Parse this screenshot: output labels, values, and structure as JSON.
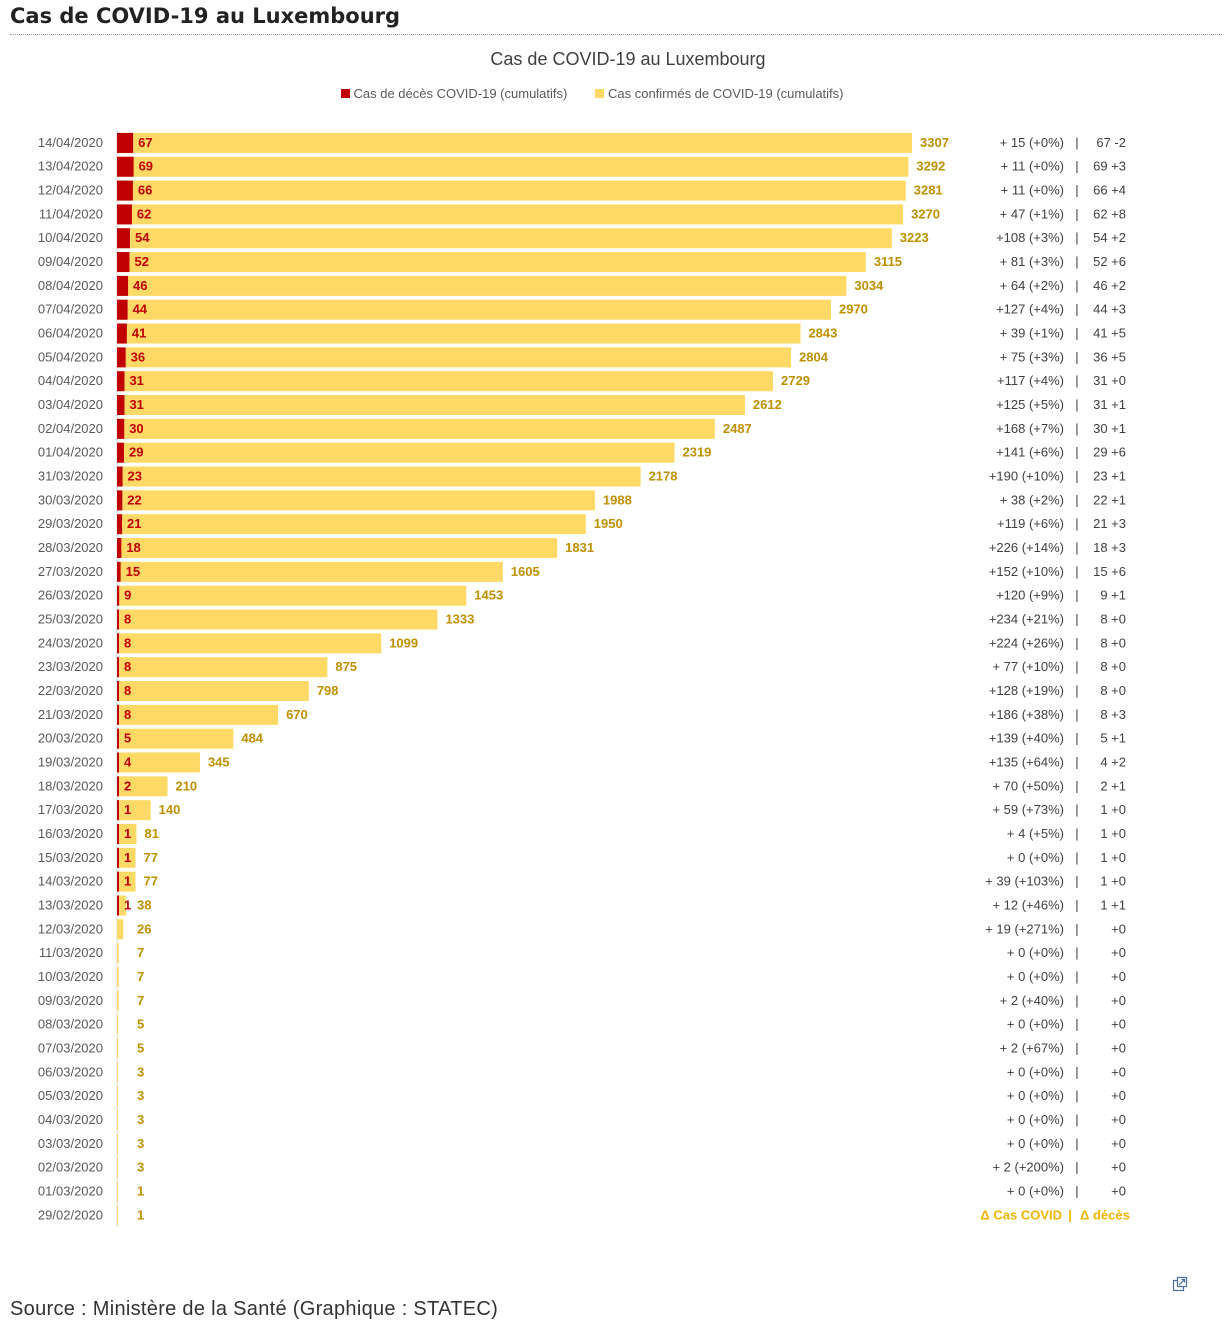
{
  "page": {
    "heading": "Cas de COVID-19 au Luxembourg",
    "source": "Source : Ministère de la Santé (Graphique : STATEC)",
    "popout_icon": "external-link-icon"
  },
  "colors": {
    "deaths": "#c00000",
    "confirmed": "#ffd966",
    "confirmed_text": "#bf9000",
    "delta_legend": "#f1b400",
    "grid": "#d9d9d9"
  },
  "chart_data": {
    "type": "bar",
    "orientation": "horizontal",
    "title": "Cas de COVID-19 au Luxembourg",
    "legend": [
      {
        "name": "Cas de décès  COVID-19 (cumulatifs)",
        "color": "#c00000"
      },
      {
        "name": "Cas confirmés de COVID-19 (cumulatifs)",
        "color": "#ffd966"
      }
    ],
    "xlim": [
      0,
      3307
    ],
    "categories": [
      "14/04/2020",
      "13/04/2020",
      "12/04/2020",
      "11/04/2020",
      "10/04/2020",
      "09/04/2020",
      "08/04/2020",
      "07/04/2020",
      "06/04/2020",
      "05/04/2020",
      "04/04/2020",
      "03/04/2020",
      "02/04/2020",
      "01/04/2020",
      "31/03/2020",
      "30/03/2020",
      "29/03/2020",
      "28/03/2020",
      "27/03/2020",
      "26/03/2020",
      "25/03/2020",
      "24/03/2020",
      "23/03/2020",
      "22/03/2020",
      "21/03/2020",
      "20/03/2020",
      "19/03/2020",
      "18/03/2020",
      "17/03/2020",
      "16/03/2020",
      "15/03/2020",
      "14/03/2020",
      "13/03/2020",
      "12/03/2020",
      "11/03/2020",
      "10/03/2020",
      "09/03/2020",
      "08/03/2020",
      "07/03/2020",
      "06/03/2020",
      "05/03/2020",
      "04/03/2020",
      "03/03/2020",
      "02/03/2020",
      "01/03/2020",
      "29/02/2020"
    ],
    "series": [
      {
        "name": "Cas de décès  COVID-19 (cumulatifs)",
        "values": [
          67,
          69,
          66,
          62,
          54,
          52,
          46,
          44,
          41,
          36,
          31,
          31,
          30,
          29,
          23,
          22,
          21,
          18,
          15,
          9,
          8,
          8,
          8,
          8,
          8,
          5,
          4,
          2,
          1,
          1,
          1,
          1,
          1,
          0,
          0,
          0,
          0,
          0,
          0,
          0,
          0,
          0,
          0,
          0,
          0,
          0
        ]
      },
      {
        "name": "Cas confirmés de COVID-19 (cumulatifs)",
        "values": [
          3307,
          3292,
          3281,
          3270,
          3223,
          3115,
          3034,
          2970,
          2843,
          2804,
          2729,
          2612,
          2487,
          2319,
          2178,
          1988,
          1950,
          1831,
          1605,
          1453,
          1333,
          1099,
          875,
          798,
          670,
          484,
          345,
          210,
          140,
          81,
          77,
          77,
          38,
          26,
          7,
          7,
          7,
          5,
          5,
          3,
          3,
          3,
          3,
          3,
          1,
          1
        ]
      }
    ],
    "death_labels": [
      "67",
      "69",
      "66",
      "62",
      "54",
      "52",
      "46",
      "44",
      "41",
      "36",
      "31",
      "31",
      "30",
      "29",
      "23",
      "22",
      "21",
      "18",
      "15",
      "9",
      "8",
      "8",
      "8",
      "8",
      "8",
      "5",
      "4",
      "2",
      "1",
      "1",
      "1",
      "1",
      "1",
      "",
      "",
      "",
      "",
      "",
      "",
      "",
      "",
      "",
      "",
      "",
      "",
      ""
    ],
    "confirmed_labels": [
      "3307",
      "3292",
      "3281",
      "3270",
      "3223",
      "3115",
      "3034",
      "2970",
      "2843",
      "2804",
      "2729",
      "2612",
      "2487",
      "2319",
      "2178",
      "1988",
      "1950",
      "1831",
      "1605",
      "1453",
      "1333",
      "1099",
      "875",
      "798",
      "670",
      "484",
      "345",
      "210",
      "140",
      "81",
      "77",
      "77",
      "38",
      "26",
      "7",
      "7",
      "7",
      "5",
      "5",
      "3",
      "3",
      "3",
      "3",
      "3",
      "1",
      "1"
    ],
    "delta_cases": [
      "+ 15 (+0%)",
      "+ 11 (+0%)",
      "+ 11 (+0%)",
      "+ 47 (+1%)",
      "+108 (+3%)",
      "+ 81 (+3%)",
      "+ 64 (+2%)",
      "+127 (+4%)",
      "+ 39 (+1%)",
      "+ 75 (+3%)",
      "+117 (+4%)",
      "+125 (+5%)",
      "+168 (+7%)",
      "+141 (+6%)",
      "+190 (+10%)",
      "+ 38 (+2%)",
      "+119 (+6%)",
      "+226 (+14%)",
      "+152 (+10%)",
      "+120 (+9%)",
      "+234 (+21%)",
      "+224 (+26%)",
      "+ 77 (+10%)",
      "+128 (+19%)",
      "+186 (+38%)",
      "+139 (+40%)",
      "+135 (+64%)",
      "+ 70 (+50%)",
      "+ 59 (+73%)",
      "+ 4 (+5%)",
      "+ 0 (+0%)",
      "+ 39 (+103%)",
      "+ 12 (+46%)",
      "+ 19 (+271%)",
      "+ 0 (+0%)",
      "+ 0 (+0%)",
      "+ 2 (+40%)",
      "+ 0 (+0%)",
      "+ 2 (+67%)",
      "+ 0 (+0%)",
      "+ 0 (+0%)",
      "+ 0 (+0%)",
      "+ 0 (+0%)",
      "+ 2 (+200%)",
      "+ 0 (+0%)",
      ""
    ],
    "separator": "|",
    "delta_deaths": [
      "67 -2",
      "69 +3",
      "66 +4",
      "62 +8",
      "54 +2",
      "52 +6",
      "46 +2",
      "44 +3",
      "41 +5",
      "36 +5",
      "31 +0",
      "31 +1",
      "30 +1",
      "29 +6",
      "23 +1",
      "22 +1",
      "21 +3",
      "18 +3",
      "15 +6",
      "9 +1",
      "8 +0",
      "8 +0",
      "8 +0",
      "8 +0",
      "8 +3",
      "5 +1",
      "4 +2",
      "2 +1",
      "1 +0",
      "1 +0",
      "1 +0",
      "1 +0",
      "1 +1",
      "+0",
      "+0",
      "+0",
      "+0",
      "+0",
      "+0",
      "+0",
      "+0",
      "+0",
      "+0",
      "+0",
      "+0",
      ""
    ],
    "delta_legend": {
      "cases": "Δ Cas COVID",
      "separator": "|",
      "deaths": "Δ décès"
    }
  }
}
